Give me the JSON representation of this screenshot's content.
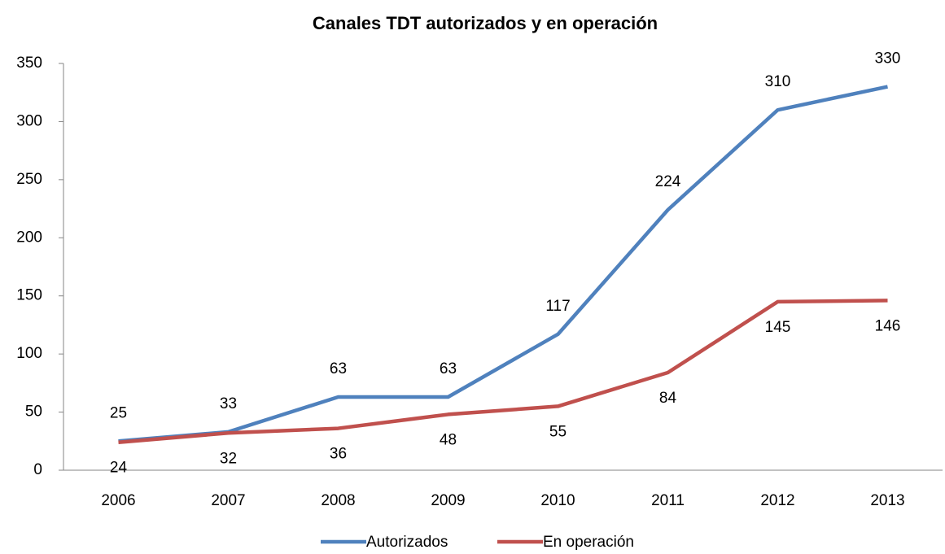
{
  "chart_data": {
    "type": "line",
    "title": "Canales TDT autorizados y en operación",
    "categories": [
      "2006",
      "2007",
      "2008",
      "2009",
      "2010",
      "2011",
      "2012",
      "2013"
    ],
    "series": [
      {
        "name": "Autorizados",
        "color": "#4f81bd",
        "values": [
          25,
          33,
          63,
          63,
          117,
          224,
          310,
          330
        ]
      },
      {
        "name": "En operación",
        "color": "#c0504d",
        "values": [
          24,
          32,
          36,
          48,
          55,
          84,
          145,
          146
        ]
      }
    ],
    "ylim": [
      0,
      350
    ],
    "yticks": [
      0,
      50,
      100,
      150,
      200,
      250,
      300,
      350
    ],
    "grid": false,
    "legend": "bottom"
  }
}
